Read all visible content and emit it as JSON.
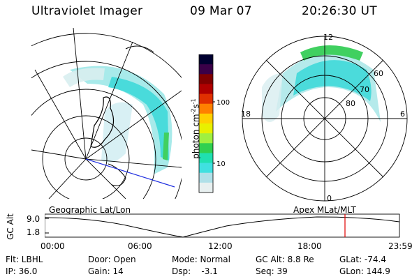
{
  "header": {
    "instrument": "Ultraviolet Imager",
    "date": "09 Mar 07",
    "time": "20:26:30 UT"
  },
  "colorbar": {
    "label": "photon cm^-2 s^-1",
    "label_base": "photon cm",
    "label_exp1": "-2",
    "label_mid": "s",
    "label_exp2": "-1",
    "ticks": [
      "100",
      "10"
    ],
    "colors": [
      "#000030",
      "#3a0048",
      "#800000",
      "#b00000",
      "#e03000",
      "#ff8000",
      "#ffd000",
      "#e8f000",
      "#a0f040",
      "#30d050",
      "#20e0b0",
      "#40e0e0",
      "#b0e0e8",
      "#e8f0f0"
    ]
  },
  "polar": {
    "lat_labels": [
      "60",
      "70",
      "80"
    ],
    "mlt_labels": {
      "top": "12",
      "left": "18",
      "right": "6",
      "bottom": "0"
    }
  },
  "orbit": {
    "left_title": "Geographic Lat/Lon",
    "right_title": "Apex MLat/MLT",
    "axis_label": "GC Alt",
    "y_max": "9.0",
    "y_min": "1.8",
    "time_ticks": [
      "00:00",
      "06:00",
      "12:00",
      "18:00",
      "23:59"
    ],
    "marker_color": "#e00000"
  },
  "info": {
    "row1": [
      "Flt: LBHL",
      "Door: Open",
      "Mode: Normal",
      "GC Alt: 8.8 Re",
      "GLat: -74.4"
    ],
    "row2": [
      "IP: 36.0",
      "Gain: 14",
      "Dsp:    -3.1",
      "Seq: 39",
      "GLon: 144.9"
    ]
  }
}
